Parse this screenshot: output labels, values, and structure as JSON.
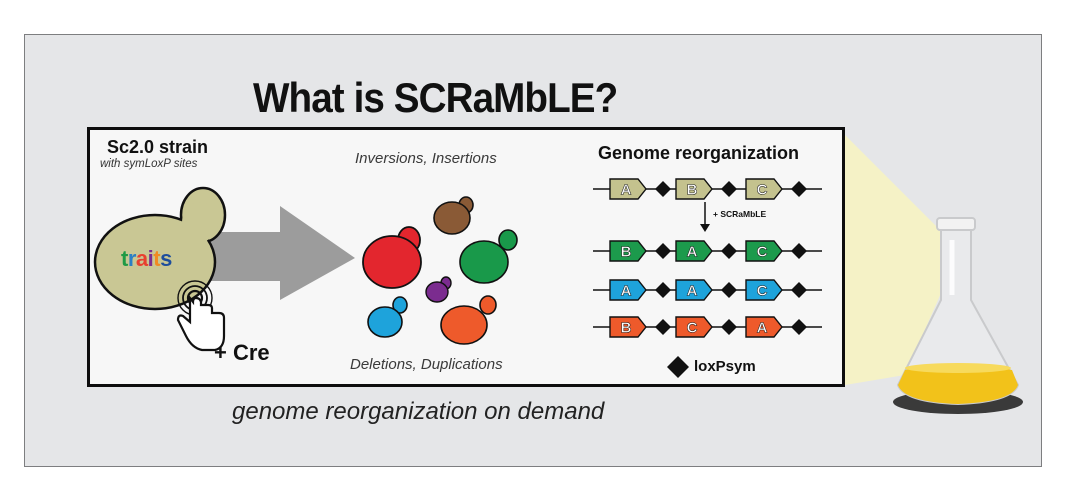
{
  "title": "What is SCRaMbLE?",
  "strain": {
    "title": "Sc2.0 strain",
    "subtitle": "with symLoxP sites",
    "traits_letters": [
      {
        "ch": "t",
        "color": "#1f9a45"
      },
      {
        "ch": "r",
        "color": "#2b7fc4"
      },
      {
        "ch": "a",
        "color": "#e8402f"
      },
      {
        "ch": "i",
        "color": "#7b2c8f"
      },
      {
        "ch": "t",
        "color": "#f08a22"
      },
      {
        "ch": "s",
        "color": "#1e4e9c"
      }
    ],
    "cre_label": "+ Cre"
  },
  "events": {
    "top": "Inversions, Insertions",
    "bottom": "Deletions, Duplications"
  },
  "genome": {
    "title": "Genome reorganization",
    "scramble_label": "+ SCRaMbLE",
    "loxpsym_label": "loxPsym",
    "rows": [
      {
        "segments": [
          {
            "label": "A",
            "color": "#c4c28e"
          },
          {
            "label": "B",
            "color": "#c4c28e"
          },
          {
            "label": "C",
            "color": "#c4c28e"
          }
        ]
      },
      {
        "segments": [
          {
            "label": "B",
            "color": "#1c9a4c"
          },
          {
            "label": "A",
            "color": "#1c9a4c"
          },
          {
            "label": "C",
            "color": "#1c9a4c"
          }
        ]
      },
      {
        "segments": [
          {
            "label": "A",
            "color": "#1ea3db"
          },
          {
            "label": "A",
            "color": "#1ea3db"
          },
          {
            "label": "C",
            "color": "#1ea3db"
          }
        ]
      },
      {
        "segments": [
          {
            "label": "B",
            "color": "#ee5a2b"
          },
          {
            "label": "C",
            "color": "#ee5a2b"
          },
          {
            "label": "A",
            "color": "#ee5a2b"
          }
        ]
      }
    ]
  },
  "footer": "genome reorganization on demand",
  "colors": {
    "yeast_mother": "#c9c794",
    "arrow": "#9c9c9c",
    "cells": [
      "#e3262e",
      "#8a5a36",
      "#19994a",
      "#7b2c8f",
      "#1ea3db",
      "#ee5a2b"
    ],
    "flask_liquid": "#f2c21a"
  }
}
